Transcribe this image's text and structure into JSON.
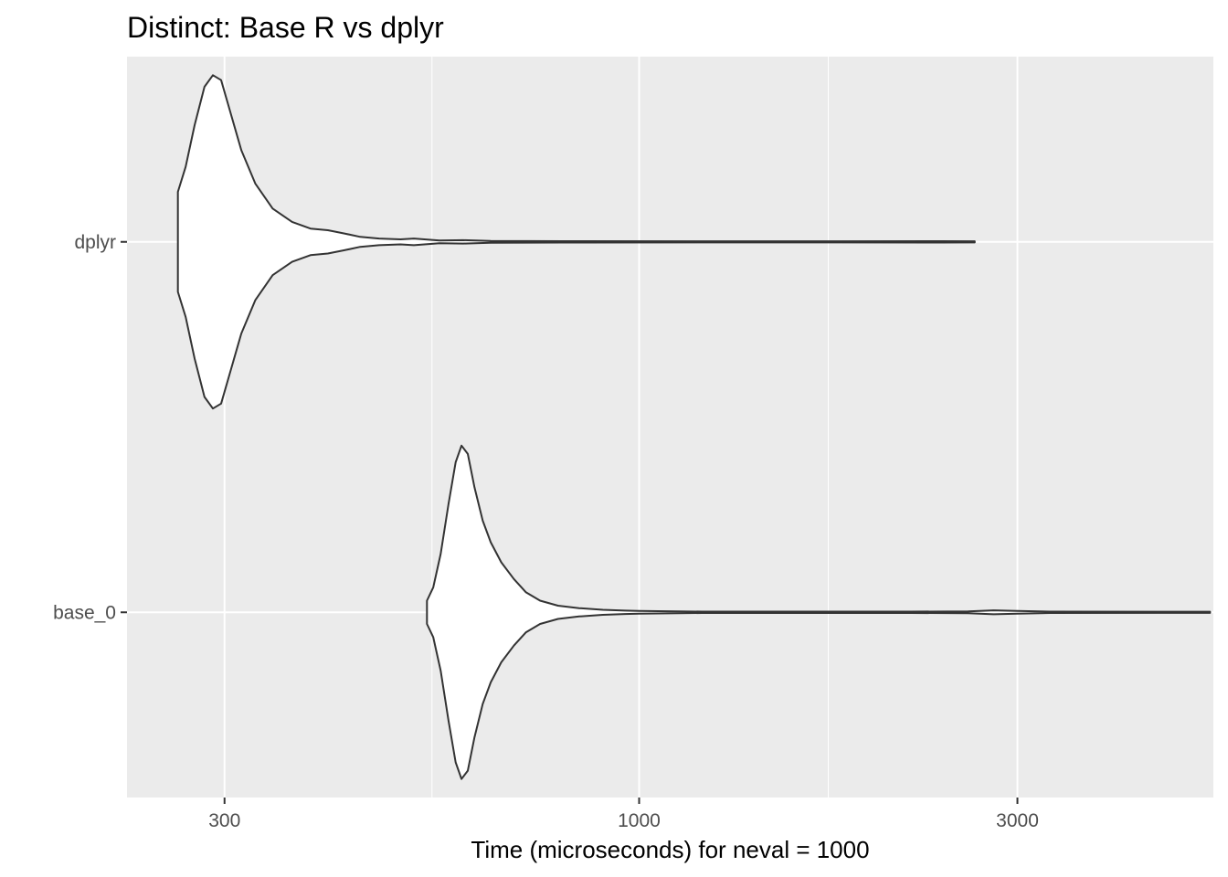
{
  "chart_data": {
    "type": "violin",
    "title": "Distinct: Base R vs dplyr",
    "xlabel": "Time (microseconds) for neval = 1000",
    "ylabel": "",
    "x_scale": "log10",
    "xlim": [
      226,
      5300
    ],
    "x_major_ticks": [
      {
        "value": 300,
        "label": "300"
      },
      {
        "value": 1000,
        "label": "1000"
      },
      {
        "value": 3000,
        "label": "3000"
      }
    ],
    "x_minor_ticks": [
      548,
      1732
    ],
    "grid": true,
    "background": "#ebebeb",
    "outline_color": "#333333",
    "fill_color": "#ffffff",
    "categories": [
      "base_0",
      "dplyr"
    ],
    "series": [
      {
        "name": "dplyr",
        "min": 262,
        "max": 2650,
        "density": [
          [
            262,
            0.3
          ],
          [
            268,
            0.45
          ],
          [
            275,
            0.7
          ],
          [
            283,
            0.93
          ],
          [
            290,
            1.0
          ],
          [
            297,
            0.97
          ],
          [
            305,
            0.78
          ],
          [
            315,
            0.55
          ],
          [
            328,
            0.35
          ],
          [
            345,
            0.2
          ],
          [
            365,
            0.12
          ],
          [
            385,
            0.08
          ],
          [
            405,
            0.07
          ],
          [
            425,
            0.05
          ],
          [
            445,
            0.03
          ],
          [
            470,
            0.02
          ],
          [
            500,
            0.015
          ],
          [
            520,
            0.02
          ],
          [
            560,
            0.008
          ],
          [
            600,
            0.01
          ],
          [
            650,
            0.005
          ],
          [
            800,
            0.004
          ],
          [
            1200,
            0.003
          ],
          [
            1800,
            0.003
          ],
          [
            2400,
            0.004
          ],
          [
            2650,
            0.003
          ]
        ]
      },
      {
        "name": "base_0",
        "min": 540,
        "max": 5250,
        "density": [
          [
            540,
            0.07
          ],
          [
            550,
            0.15
          ],
          [
            562,
            0.35
          ],
          [
            575,
            0.65
          ],
          [
            587,
            0.9
          ],
          [
            597,
            1.0
          ],
          [
            608,
            0.95
          ],
          [
            620,
            0.75
          ],
          [
            635,
            0.55
          ],
          [
            650,
            0.42
          ],
          [
            670,
            0.3
          ],
          [
            695,
            0.2
          ],
          [
            720,
            0.12
          ],
          [
            750,
            0.07
          ],
          [
            790,
            0.04
          ],
          [
            840,
            0.025
          ],
          [
            900,
            0.015
          ],
          [
            960,
            0.01
          ],
          [
            1000,
            0.008
          ],
          [
            1200,
            0.004
          ],
          [
            1700,
            0.004
          ],
          [
            2200,
            0.004
          ],
          [
            2600,
            0.005
          ],
          [
            2800,
            0.012
          ],
          [
            3000,
            0.008
          ],
          [
            3300,
            0.004
          ],
          [
            4500,
            0.003
          ],
          [
            5250,
            0.003
          ]
        ]
      }
    ]
  }
}
